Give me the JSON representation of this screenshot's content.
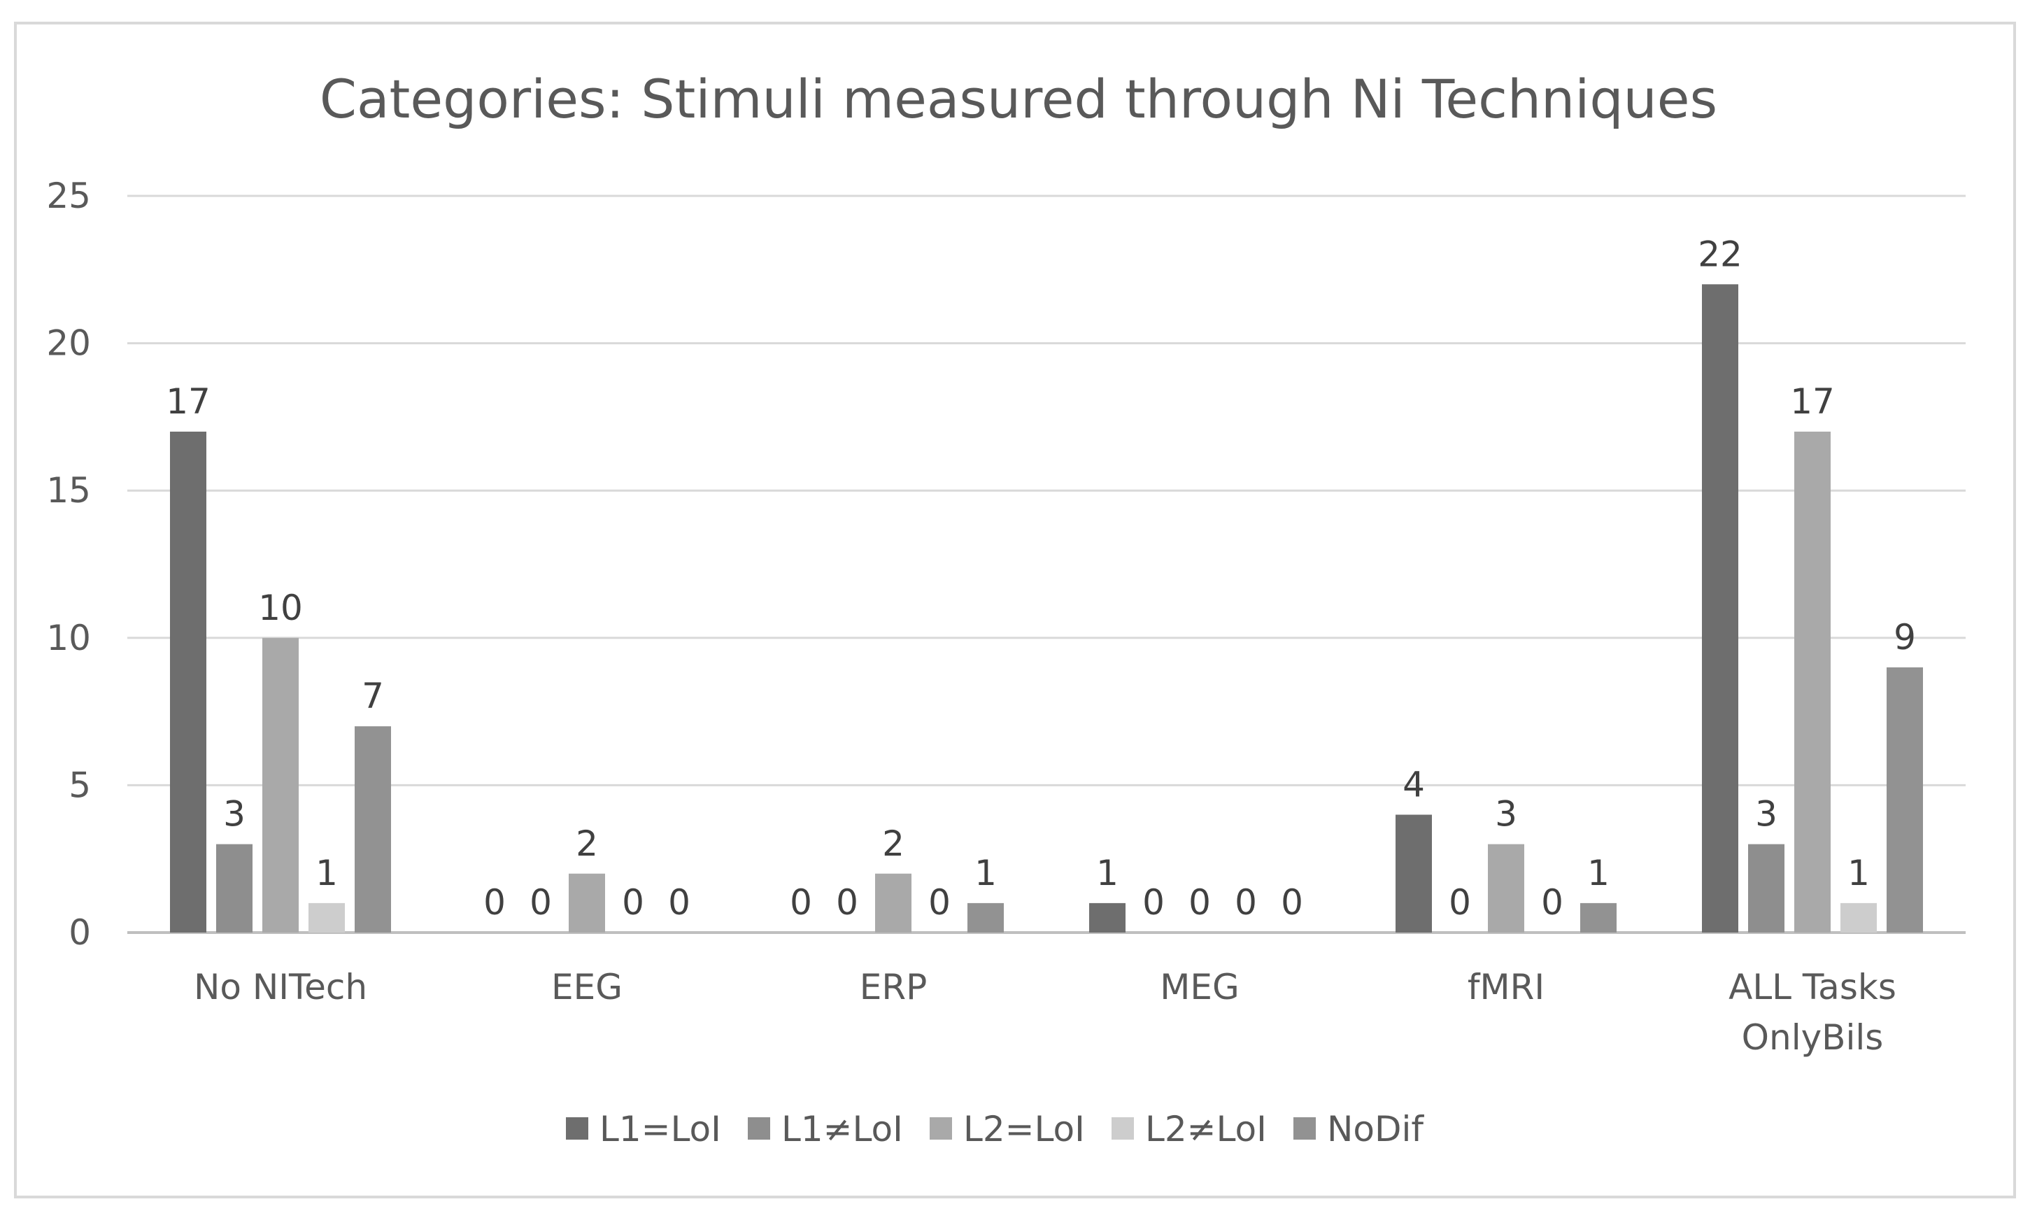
{
  "chart_data": {
    "type": "bar",
    "title": "Categories: Stimuli measured through Ni Techniques",
    "xlabel": "",
    "ylabel": "",
    "ylim": [
      0,
      25
    ],
    "yticks": [
      0,
      5,
      10,
      15,
      20,
      25
    ],
    "grid": true,
    "legend_position": "bottom",
    "categories": [
      [
        "No NITech"
      ],
      [
        "EEG"
      ],
      [
        "ERP"
      ],
      [
        "MEG"
      ],
      [
        "fMRI"
      ],
      [
        "ALL Tasks",
        "OnlyBils"
      ]
    ],
    "series": [
      {
        "name": "L1=LoI",
        "color": "#6e6e6e",
        "values": [
          17,
          0,
          0,
          1,
          4,
          22
        ]
      },
      {
        "name": "L1≠LoI",
        "color": "#8e8e8e",
        "values": [
          3,
          0,
          0,
          0,
          0,
          3
        ]
      },
      {
        "name": "L2=LoI",
        "color": "#a9a9a9",
        "values": [
          10,
          2,
          2,
          0,
          3,
          17
        ]
      },
      {
        "name": "L2≠LoI",
        "color": "#cdcdcd",
        "values": [
          1,
          0,
          0,
          0,
          0,
          1
        ]
      },
      {
        "name": "NoDif",
        "color": "#929292",
        "values": [
          7,
          0,
          1,
          0,
          1,
          9
        ]
      }
    ]
  },
  "colors": {
    "gridline": "#d9d9d9",
    "axis": "#bfbfbf",
    "frame": "#d9d9d9",
    "text": "#595959"
  }
}
